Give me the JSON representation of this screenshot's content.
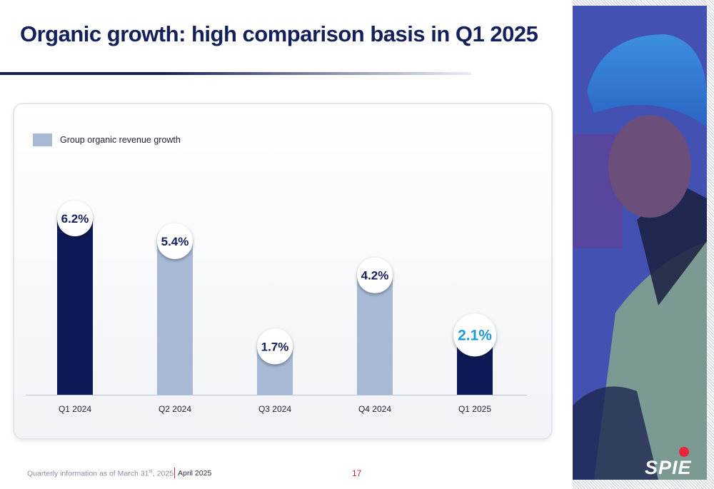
{
  "title": "Organic growth: high comparison basis in Q1 2025",
  "legend": {
    "label": "Group organic revenue growth",
    "color": "#a7b9d5"
  },
  "chart_data": {
    "type": "bar",
    "categories": [
      "Q1 2024",
      "Q2 2024",
      "Q3 2024",
      "Q4 2024",
      "Q1 2025"
    ],
    "values": [
      6.2,
      5.4,
      1.7,
      4.2,
      2.1
    ],
    "labels": [
      "6.2%",
      "5.4%",
      "1.7%",
      "4.2%",
      "2.1%"
    ],
    "bar_colors": [
      "#0e1a57",
      "#a7b9d5",
      "#a7b9d5",
      "#a7b9d5",
      "#0e1a57"
    ],
    "label_colors": [
      "#14205c",
      "#14205c",
      "#14205c",
      "#14205c",
      "#1e9bd7"
    ],
    "series": [
      {
        "name": "Group organic revenue growth",
        "values": [
          6.2,
          5.4,
          1.7,
          4.2,
          2.1
        ]
      }
    ],
    "ylim": [
      0,
      6.2
    ],
    "grid": false,
    "legend_position": "top-left"
  },
  "footer": {
    "note_prefix": "Quarterly information as of March 31",
    "note_sup": "st",
    "note_suffix": ", 2025",
    "date": "April 2025",
    "page": "17"
  },
  "logo": {
    "text": "SPIE"
  },
  "photo": {
    "icon": "worker-photo"
  }
}
